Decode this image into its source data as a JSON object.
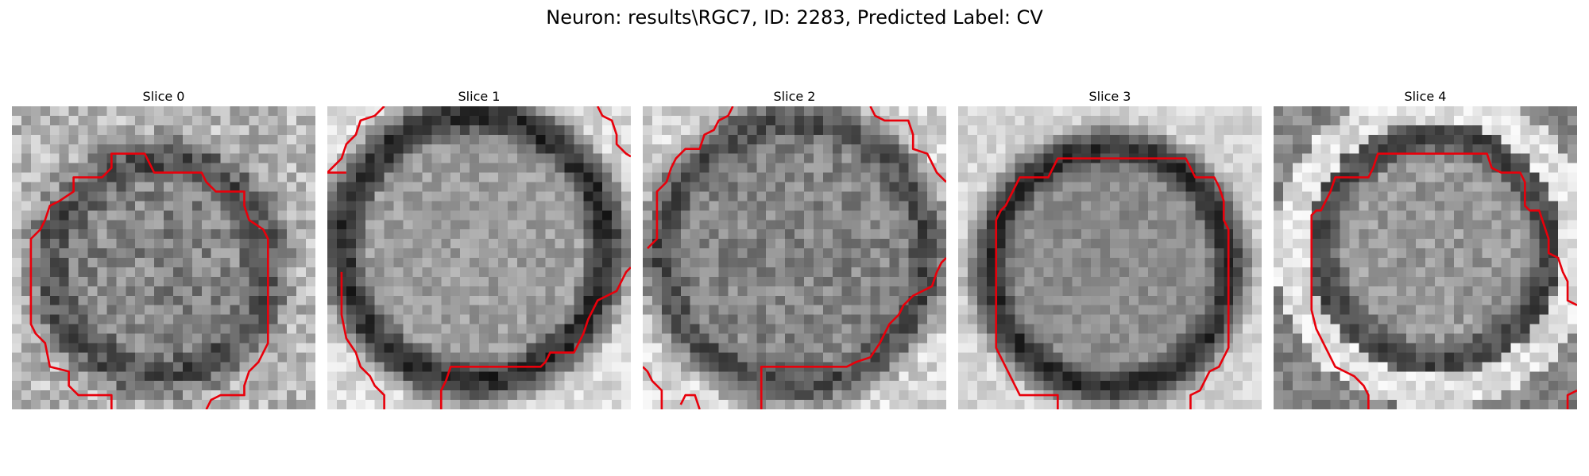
{
  "figure": {
    "title": "Neuron: results\\RGC7, ID: 2283, Predicted Label: CV",
    "contour_color": "#e8000b",
    "colormap": "grayscale",
    "slices": [
      {
        "title": "Slice 0"
      },
      {
        "title": "Slice 1"
      },
      {
        "title": "Slice 2"
      },
      {
        "title": "Slice 3"
      },
      {
        "title": "Slice 4"
      }
    ]
  }
}
